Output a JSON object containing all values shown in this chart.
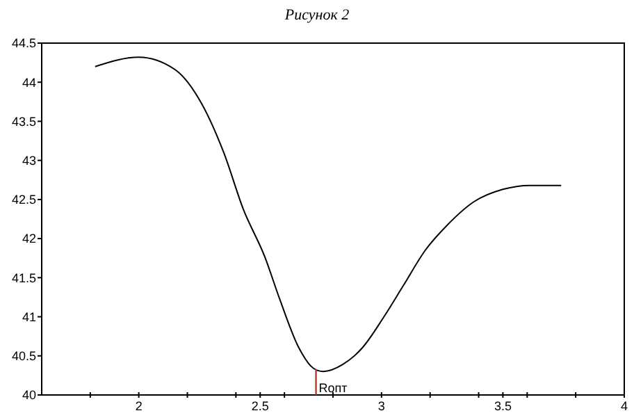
{
  "chart_data": {
    "type": "line",
    "title": "Рисунок 2",
    "x": [
      1.82,
      2.0,
      2.15,
      2.26,
      2.35,
      2.43,
      2.52,
      2.58,
      2.66,
      2.72,
      2.76,
      2.84,
      2.92,
      3.01,
      3.09,
      3.18,
      3.27,
      3.38,
      3.5,
      3.61,
      3.74
    ],
    "series": [
      {
        "color": "#000000",
        "values": [
          44.2,
          44.32,
          44.16,
          43.72,
          43.1,
          42.38,
          41.76,
          41.23,
          40.6,
          40.34,
          40.3,
          40.39,
          40.6,
          41.0,
          41.4,
          41.85,
          42.17,
          42.47,
          42.63,
          42.68,
          42.68
        ]
      }
    ],
    "xlim": [
      1.6,
      4
    ],
    "xticks": [
      {
        "value": 1.8,
        "label": null
      },
      2,
      {
        "value": 2.2,
        "label": null
      },
      {
        "value": 2.4,
        "label": null
      },
      2.5,
      {
        "value": 2.6,
        "label": null
      },
      {
        "value": 2.8,
        "label": null
      },
      3,
      {
        "value": 3.2,
        "label": null
      },
      {
        "value": 3.4,
        "label": null
      },
      3.5,
      {
        "value": 3.6,
        "label": null
      },
      {
        "value": 3.8,
        "label": null
      },
      4
    ],
    "ylim": [
      40,
      44.5
    ],
    "yticks": [
      40,
      40.5,
      41,
      41.5,
      42,
      42.5,
      43,
      43.5,
      44,
      44.5
    ],
    "ref_lines": [
      {
        "axis": "x",
        "value": 2.73,
        "label": "Rопт",
        "color": "#c0392b"
      }
    ],
    "grid": false,
    "marker": "none",
    "line_style": "solid"
  }
}
